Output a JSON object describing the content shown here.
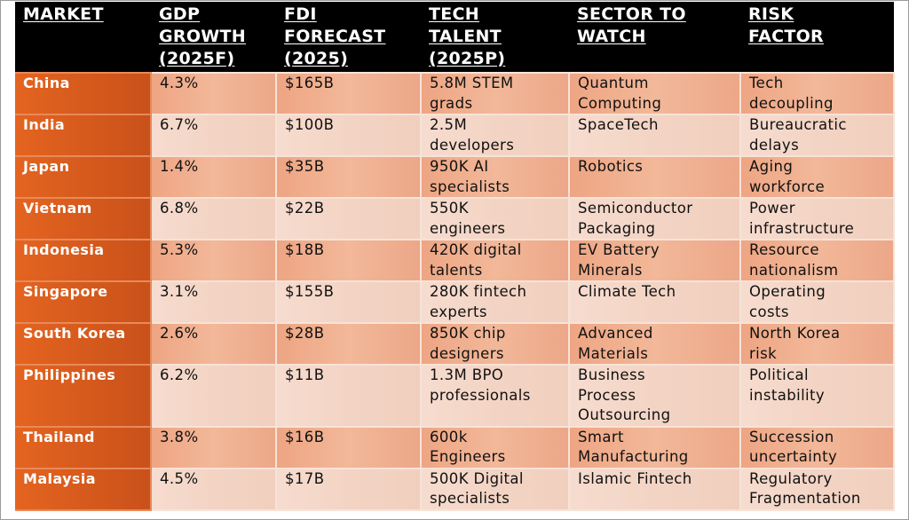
{
  "headers": {
    "market": "MARKET",
    "gdp": [
      "GDP",
      "GROWTH",
      "(2025F)"
    ],
    "fdi": [
      "FDI",
      "FORECAST",
      "(2025)"
    ],
    "tech": [
      "TECH",
      "TALENT",
      "(2025P)"
    ],
    "sector": [
      "SECTOR TO",
      "WATCH"
    ],
    "risk": [
      "RISK",
      "FACTOR"
    ]
  },
  "rows": [
    {
      "market": "China",
      "gdp": "4.3%",
      "fdi": "$165B",
      "tech": [
        "5.8M STEM",
        "grads"
      ],
      "sector": [
        "Quantum",
        "Computing"
      ],
      "risk": [
        "Tech",
        "decoupling"
      ]
    },
    {
      "market": "India",
      "gdp": "6.7%",
      "fdi": "$100B",
      "tech": [
        "2.5M",
        "developers"
      ],
      "sector": [
        "SpaceTech"
      ],
      "risk": [
        "Bureaucratic",
        "delays"
      ]
    },
    {
      "market": "Japan",
      "gdp": "1.4%",
      "fdi": "$35B",
      "tech": [
        "950K AI",
        "specialists"
      ],
      "sector": [
        "Robotics"
      ],
      "risk": [
        "Aging",
        "workforce"
      ]
    },
    {
      "market": "Vietnam",
      "gdp": "6.8%",
      "fdi": "$22B",
      "tech": [
        "550K",
        "engineers"
      ],
      "sector": [
        "Semiconductor",
        "Packaging"
      ],
      "risk": [
        "Power",
        "infrastructure"
      ]
    },
    {
      "market": "Indonesia",
      "gdp": "5.3%",
      "fdi": "$18B",
      "tech": [
        "420K digital",
        "talents"
      ],
      "sector": [
        "EV Battery",
        "Minerals"
      ],
      "risk": [
        "Resource",
        "nationalism"
      ]
    },
    {
      "market": "Singapore",
      "gdp": "3.1%",
      "fdi": "$155B",
      "tech": [
        "280K fintech",
        "experts"
      ],
      "sector": [
        "Climate Tech"
      ],
      "risk": [
        "Operating",
        "costs"
      ]
    },
    {
      "market": "South Korea",
      "gdp": "2.6%",
      "fdi": "$28B",
      "tech": [
        "850K chip",
        "designers"
      ],
      "sector": [
        "Advanced",
        "Materials"
      ],
      "risk": [
        "North Korea",
        "risk"
      ]
    },
    {
      "market": "Philippines",
      "gdp": "6.2%",
      "fdi": "$11B",
      "tech": [
        "1.3M BPO",
        "professionals"
      ],
      "sector": [
        "Business",
        "Process",
        "Outsourcing"
      ],
      "risk": [
        "Political",
        "instability"
      ]
    },
    {
      "market": "Thailand",
      "gdp": "3.8%",
      "fdi": "$16B",
      "tech": [
        "600k",
        "Engineers"
      ],
      "sector": [
        "Smart",
        "Manufacturing"
      ],
      "risk": [
        "Succession",
        "uncertainty"
      ]
    },
    {
      "market": "Malaysia",
      "gdp": "4.5%",
      "fdi": "$17B",
      "tech": [
        "500K Digital",
        "specialists"
      ],
      "sector": [
        "Islamic Fintech"
      ],
      "risk": [
        "Regulatory",
        "Fragmentation"
      ]
    }
  ]
}
